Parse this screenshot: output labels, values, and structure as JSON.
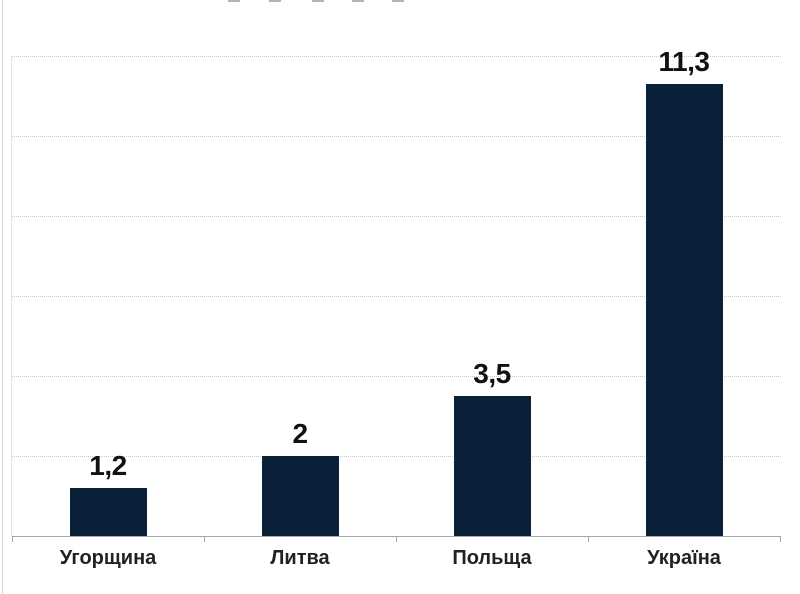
{
  "chart_data": {
    "type": "bar",
    "title": "",
    "categories": [
      "Угорщина",
      "Литва",
      "Польща",
      "Україна"
    ],
    "values": [
      1.2,
      2,
      3.5,
      11.3
    ],
    "value_labels": [
      "1,2",
      "2",
      "3,5",
      "11,3"
    ],
    "xlabel": "",
    "ylabel": "",
    "ylim": [
      0,
      12
    ],
    "gridline_step": 2,
    "grid": "horizontal-dotted",
    "legend": "none",
    "decimal_separator": ",",
    "colors": {
      "bar": "#0b2139",
      "axis": "#a6a6a6",
      "gridline": "#c6c6c6",
      "value_label": "#111111",
      "category_label": "#222222",
      "background": "#ffffff"
    }
  }
}
